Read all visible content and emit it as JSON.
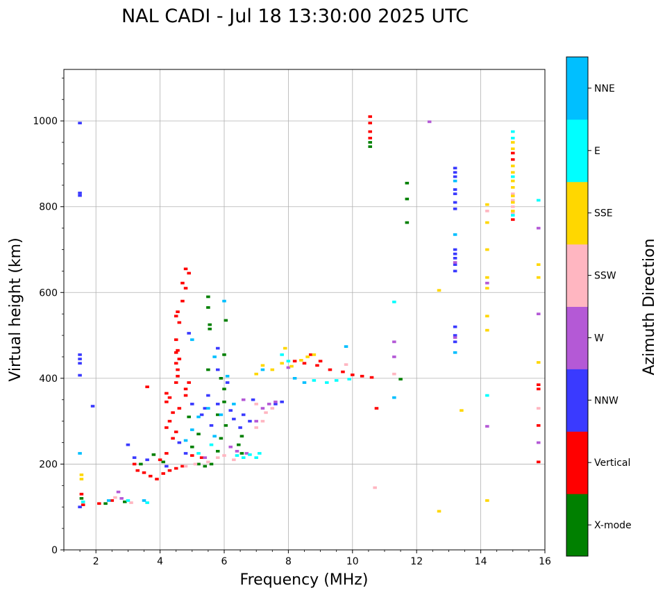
{
  "chart_data": {
    "type": "scatter",
    "title": "NAL CADI - Jul 18 13:30:00 2025 UTC",
    "xlabel": "Frequency (MHz)",
    "ylabel": "Virtual height (km)",
    "xlim": [
      1,
      16
    ],
    "ylim": [
      0,
      1120
    ],
    "xticks": [
      2,
      4,
      6,
      8,
      10,
      12,
      14,
      16
    ],
    "xtick_labels": [
      "2",
      "4",
      "6",
      "8",
      "10",
      "12",
      "14",
      "16"
    ],
    "yticks": [
      0,
      200,
      400,
      600,
      800,
      1000
    ],
    "ytick_labels": [
      "0",
      "200",
      "400",
      "600",
      "800",
      "1000"
    ],
    "grid": true,
    "colorbar": {
      "label": "Azimuth Direction",
      "categories": [
        "X-mode",
        "Vertical",
        "NNW",
        "W",
        "SSW",
        "SSE",
        "E",
        "NNE"
      ],
      "colors": [
        "#008000",
        "#ff0000",
        "#3a3aff",
        "#b459d6",
        "#ffb6c1",
        "#ffd700",
        "#00ffff",
        "#00bfff"
      ]
    },
    "series": [
      {
        "name": "X-mode",
        "points": [
          [
            1.55,
            120
          ],
          [
            2.3,
            108
          ],
          [
            2.9,
            112
          ],
          [
            3.4,
            200
          ],
          [
            3.8,
            222
          ],
          [
            4.1,
            205
          ],
          [
            5.5,
            590
          ],
          [
            5.5,
            565
          ],
          [
            5.55,
            525
          ],
          [
            5.55,
            515
          ],
          [
            6.05,
            535
          ],
          [
            6.0,
            455
          ],
          [
            5.5,
            420
          ],
          [
            5.9,
            400
          ],
          [
            6.0,
            375
          ],
          [
            6.0,
            345
          ],
          [
            5.2,
            200
          ],
          [
            5.4,
            195
          ],
          [
            5.6,
            200
          ],
          [
            5.8,
            230
          ],
          [
            6.05,
            290
          ],
          [
            6.55,
            265
          ],
          [
            6.45,
            245
          ],
          [
            6.55,
            225
          ],
          [
            5.9,
            260
          ],
          [
            11.5,
            398
          ],
          [
            10.55,
            950
          ],
          [
            10.55,
            940
          ],
          [
            11.7,
            855
          ],
          [
            11.7,
            818
          ],
          [
            11.7,
            763
          ],
          [
            4.9,
            310
          ],
          [
            5.2,
            270
          ],
          [
            5.0,
            240
          ],
          [
            5.8,
            315
          ]
        ]
      },
      {
        "name": "Vertical",
        "points": [
          [
            1.55,
            130
          ],
          [
            1.6,
            105
          ],
          [
            2.1,
            108
          ],
          [
            2.5,
            115
          ],
          [
            3.2,
            200
          ],
          [
            3.3,
            185
          ],
          [
            3.5,
            180
          ],
          [
            3.7,
            172
          ],
          [
            3.9,
            165
          ],
          [
            4.1,
            178
          ],
          [
            4.3,
            185
          ],
          [
            4.5,
            190
          ],
          [
            4.7,
            195
          ],
          [
            4.0,
            210
          ],
          [
            4.2,
            225
          ],
          [
            4.4,
            260
          ],
          [
            4.5,
            275
          ],
          [
            4.2,
            285
          ],
          [
            4.3,
            300
          ],
          [
            4.4,
            320
          ],
          [
            4.2,
            345
          ],
          [
            4.3,
            355
          ],
          [
            4.2,
            365
          ],
          [
            4.6,
            330
          ],
          [
            4.5,
            390
          ],
          [
            4.55,
            405
          ],
          [
            4.55,
            420
          ],
          [
            4.5,
            435
          ],
          [
            4.6,
            445
          ],
          [
            4.55,
            465
          ],
          [
            4.6,
            530
          ],
          [
            4.5,
            545
          ],
          [
            4.55,
            555
          ],
          [
            4.7,
            580
          ],
          [
            4.8,
            610
          ],
          [
            4.9,
            645
          ],
          [
            4.8,
            655
          ],
          [
            4.7,
            622
          ],
          [
            4.5,
            460
          ],
          [
            4.5,
            490
          ],
          [
            3.6,
            380
          ],
          [
            5.0,
            220
          ],
          [
            5.3,
            215
          ],
          [
            4.8,
            375
          ],
          [
            4.8,
            360
          ],
          [
            4.9,
            390
          ],
          [
            8.2,
            440
          ],
          [
            8.5,
            435
          ],
          [
            8.9,
            430
          ],
          [
            9.3,
            420
          ],
          [
            9.7,
            415
          ],
          [
            10.0,
            408
          ],
          [
            10.3,
            405
          ],
          [
            10.6,
            402
          ],
          [
            10.75,
            330
          ],
          [
            10.55,
            1010
          ],
          [
            10.55,
            995
          ],
          [
            10.55,
            975
          ],
          [
            10.55,
            960
          ],
          [
            15.0,
            770
          ],
          [
            15.0,
            925
          ],
          [
            15.0,
            910
          ],
          [
            15.8,
            385
          ],
          [
            15.8,
            375
          ],
          [
            15.8,
            290
          ],
          [
            15.8,
            205
          ],
          [
            8.7,
            455
          ],
          [
            9.0,
            440
          ]
        ]
      },
      {
        "name": "NNW",
        "points": [
          [
            1.5,
            995
          ],
          [
            1.5,
            832
          ],
          [
            1.5,
            826
          ],
          [
            1.5,
            455
          ],
          [
            1.5,
            445
          ],
          [
            1.5,
            435
          ],
          [
            1.5,
            407
          ],
          [
            1.5,
            100
          ],
          [
            1.9,
            335
          ],
          [
            3.0,
            245
          ],
          [
            3.2,
            215
          ],
          [
            3.6,
            210
          ],
          [
            4.2,
            195
          ],
          [
            4.6,
            250
          ],
          [
            4.8,
            225
          ],
          [
            5.0,
            340
          ],
          [
            5.3,
            315
          ],
          [
            5.6,
            290
          ],
          [
            5.8,
            340
          ],
          [
            6.2,
            325
          ],
          [
            6.3,
            305
          ],
          [
            6.5,
            285
          ],
          [
            6.6,
            315
          ],
          [
            6.8,
            300
          ],
          [
            6.9,
            350
          ],
          [
            7.6,
            340
          ],
          [
            7.8,
            345
          ],
          [
            5.5,
            360
          ],
          [
            5.8,
            470
          ],
          [
            13.2,
            890
          ],
          [
            13.2,
            880
          ],
          [
            13.2,
            870
          ],
          [
            13.2,
            840
          ],
          [
            13.2,
            830
          ],
          [
            13.2,
            810
          ],
          [
            13.2,
            795
          ],
          [
            13.2,
            700
          ],
          [
            13.2,
            690
          ],
          [
            13.2,
            680
          ],
          [
            13.2,
            665
          ],
          [
            13.2,
            650
          ],
          [
            13.2,
            520
          ],
          [
            13.2,
            500
          ],
          [
            13.2,
            485
          ],
          [
            4.9,
            505
          ],
          [
            5.4,
            330
          ],
          [
            5.8,
            420
          ],
          [
            6.1,
            390
          ]
        ]
      },
      {
        "name": "W",
        "points": [
          [
            2.7,
            135
          ],
          [
            2.8,
            120
          ],
          [
            5.4,
            215
          ],
          [
            6.2,
            240
          ],
          [
            6.4,
            230
          ],
          [
            6.7,
            225
          ],
          [
            7.2,
            330
          ],
          [
            7.4,
            340
          ],
          [
            7.6,
            345
          ],
          [
            7.0,
            300
          ],
          [
            6.6,
            350
          ],
          [
            8.0,
            425
          ],
          [
            11.3,
            485
          ],
          [
            11.3,
            450
          ],
          [
            12.4,
            998
          ],
          [
            13.2,
            670
          ],
          [
            13.2,
            495
          ],
          [
            14.2,
            622
          ],
          [
            14.2,
            288
          ],
          [
            15.8,
            750
          ],
          [
            15.8,
            550
          ],
          [
            15.8,
            250
          ]
        ]
      },
      {
        "name": "SSW",
        "points": [
          [
            2.6,
            122
          ],
          [
            3.1,
            110
          ],
          [
            4.8,
            195
          ],
          [
            5.1,
            200
          ],
          [
            5.5,
            205
          ],
          [
            5.8,
            215
          ],
          [
            6.0,
            220
          ],
          [
            6.3,
            210
          ],
          [
            7.0,
            285
          ],
          [
            7.2,
            300
          ],
          [
            7.3,
            320
          ],
          [
            7.5,
            330
          ],
          [
            7.0,
            340
          ],
          [
            9.8,
            432
          ],
          [
            10.7,
            145
          ],
          [
            14.2,
            790
          ],
          [
            15.0,
            830
          ],
          [
            15.0,
            815
          ],
          [
            15.0,
            800
          ],
          [
            15.0,
            785
          ],
          [
            15.8,
            330
          ],
          [
            11.3,
            410
          ]
        ]
      },
      {
        "name": "SSE",
        "points": [
          [
            1.55,
            175
          ],
          [
            1.55,
            165
          ],
          [
            7.2,
            430
          ],
          [
            7.5,
            420
          ],
          [
            7.8,
            435
          ],
          [
            8.1,
            428
          ],
          [
            8.4,
            442
          ],
          [
            8.6,
            450
          ],
          [
            8.8,
            455
          ],
          [
            7.0,
            410
          ],
          [
            7.9,
            470
          ],
          [
            12.7,
            605
          ],
          [
            12.7,
            90
          ],
          [
            13.4,
            325
          ],
          [
            14.2,
            805
          ],
          [
            14.2,
            763
          ],
          [
            14.2,
            700
          ],
          [
            14.2,
            635
          ],
          [
            14.2,
            610
          ],
          [
            14.2,
            545
          ],
          [
            14.2,
            512
          ],
          [
            14.2,
            115
          ],
          [
            15.0,
            950
          ],
          [
            15.0,
            935
          ],
          [
            15.0,
            895
          ],
          [
            15.0,
            880
          ],
          [
            15.0,
            860
          ],
          [
            15.0,
            845
          ],
          [
            15.0,
            825
          ],
          [
            15.0,
            810
          ],
          [
            15.0,
            790
          ],
          [
            15.8,
            665
          ],
          [
            15.8,
            635
          ],
          [
            15.8,
            437
          ]
        ]
      },
      {
        "name": "E",
        "points": [
          [
            1.6,
            112
          ],
          [
            3.0,
            115
          ],
          [
            3.6,
            110
          ],
          [
            6.4,
            220
          ],
          [
            6.6,
            215
          ],
          [
            6.8,
            222
          ],
          [
            7.0,
            215
          ],
          [
            7.1,
            225
          ],
          [
            7.8,
            455
          ],
          [
            8.0,
            440
          ],
          [
            8.8,
            395
          ],
          [
            9.2,
            390
          ],
          [
            9.5,
            395
          ],
          [
            9.9,
            398
          ],
          [
            5.2,
            225
          ],
          [
            5.6,
            245
          ],
          [
            14.2,
            360
          ],
          [
            15.0,
            975
          ],
          [
            15.0,
            960
          ],
          [
            15.0,
            870
          ],
          [
            15.0,
            780
          ],
          [
            15.8,
            815
          ],
          [
            11.3,
            578
          ]
        ]
      },
      {
        "name": "NNE",
        "points": [
          [
            1.5,
            225
          ],
          [
            2.4,
            115
          ],
          [
            3.5,
            115
          ],
          [
            4.8,
            255
          ],
          [
            5.0,
            280
          ],
          [
            5.2,
            310
          ],
          [
            5.5,
            330
          ],
          [
            5.7,
            265
          ],
          [
            5.9,
            315
          ],
          [
            6.0,
            580
          ],
          [
            6.1,
            405
          ],
          [
            6.3,
            340
          ],
          [
            7.2,
            420
          ],
          [
            8.2,
            400
          ],
          [
            8.5,
            390
          ],
          [
            9.8,
            474
          ],
          [
            11.3,
            355
          ],
          [
            13.2,
            460
          ],
          [
            13.2,
            860
          ],
          [
            13.2,
            735
          ],
          [
            5.0,
            490
          ],
          [
            5.7,
            450
          ]
        ]
      }
    ]
  }
}
